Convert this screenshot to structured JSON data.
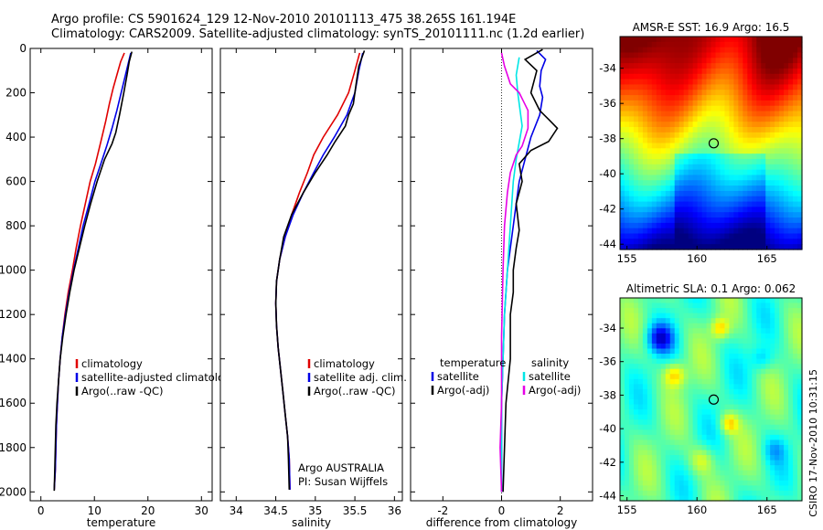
{
  "header": {
    "line1": "Argo profile: CS 5901624_129 12-Nov-2010 20101113_475 38.265S 161.194E",
    "line2": "Climatology: CARS2009. Satellite-adjusted climatology: synTS_20101111.nc (1.2d earlier)"
  },
  "footer": {
    "stamp": "CSIRO 17-Nov-2010 10:31:15"
  },
  "colors": {
    "red": "#e00000",
    "blue": "#0000e6",
    "black": "#000000",
    "cyan": "#00e6e6",
    "magenta": "#e600e6"
  },
  "chart_data": [
    {
      "id": "temperature",
      "type": "line",
      "xlabel": "temperature",
      "ylabel": "",
      "xlim": [
        -2,
        32
      ],
      "ylim": [
        2040,
        0
      ],
      "xticks": [
        0,
        10,
        20,
        30
      ],
      "yticks": [
        0,
        200,
        400,
        600,
        800,
        1000,
        1200,
        1400,
        1600,
        1800,
        2000
      ],
      "legend": {
        "position": "lower-center",
        "entries": [
          "climatology",
          "satellite-adjusted climatology",
          "Argo(..raw -QC)"
        ]
      },
      "series": [
        {
          "color_key": "red",
          "points": [
            [
              15.6,
              20
            ],
            [
              14.9,
              60
            ],
            [
              14.2,
              120
            ],
            [
              13.5,
              180
            ],
            [
              12.8,
              250
            ],
            [
              12.1,
              330
            ],
            [
              11.2,
              420
            ],
            [
              10.2,
              520
            ],
            [
              9.2,
              600
            ],
            [
              8.3,
              700
            ],
            [
              7.4,
              800
            ],
            [
              6.6,
              900
            ],
            [
              5.9,
              1000
            ],
            [
              5.1,
              1100
            ],
            [
              4.5,
              1200
            ],
            [
              4.0,
              1300
            ],
            [
              3.6,
              1400
            ],
            [
              3.3,
              1500
            ],
            [
              3.1,
              1600
            ],
            [
              2.9,
              1700
            ],
            [
              2.8,
              1800
            ],
            [
              2.7,
              1900
            ],
            [
              2.5,
              1990
            ]
          ]
        },
        {
          "color_key": "blue",
          "points": [
            [
              16.8,
              20
            ],
            [
              16.4,
              60
            ],
            [
              15.8,
              120
            ],
            [
              15.0,
              200
            ],
            [
              14.2,
              280
            ],
            [
              13.3,
              360
            ],
            [
              12.3,
              440
            ],
            [
              11.2,
              520
            ],
            [
              10.1,
              600
            ],
            [
              9.0,
              700
            ],
            [
              7.9,
              800
            ],
            [
              7.0,
              900
            ],
            [
              6.1,
              1000
            ],
            [
              5.3,
              1100
            ],
            [
              4.6,
              1200
            ],
            [
              4.0,
              1300
            ],
            [
              3.6,
              1400
            ],
            [
              3.3,
              1500
            ],
            [
              3.1,
              1600
            ],
            [
              2.9,
              1700
            ],
            [
              2.8,
              1800
            ],
            [
              2.7,
              1900
            ],
            [
              2.5,
              1990
            ]
          ]
        },
        {
          "color_key": "black",
          "points": [
            [
              17.0,
              15
            ],
            [
              16.5,
              60
            ],
            [
              16.1,
              120
            ],
            [
              15.5,
              200
            ],
            [
              14.7,
              300
            ],
            [
              14.0,
              380
            ],
            [
              13.3,
              430
            ],
            [
              11.9,
              500
            ],
            [
              10.5,
              600
            ],
            [
              9.3,
              700
            ],
            [
              8.2,
              800
            ],
            [
              7.2,
              900
            ],
            [
              6.2,
              1000
            ],
            [
              5.4,
              1100
            ],
            [
              4.7,
              1200
            ],
            [
              4.1,
              1300
            ],
            [
              3.6,
              1400
            ],
            [
              3.3,
              1500
            ],
            [
              3.0,
              1600
            ],
            [
              2.8,
              1700
            ],
            [
              2.7,
              1800
            ],
            [
              2.6,
              1900
            ],
            [
              2.5,
              1995
            ]
          ]
        }
      ]
    },
    {
      "id": "salinity",
      "type": "line",
      "xlabel": "salinity",
      "ylabel": "",
      "xlim": [
        33.8,
        36.1
      ],
      "ylim": [
        2040,
        0
      ],
      "xticks": [
        34,
        34.5,
        35,
        35.5,
        36
      ],
      "yticks": [
        0,
        200,
        400,
        600,
        800,
        1000,
        1200,
        1400,
        1600,
        1800,
        2000
      ],
      "legend": {
        "position": "lower-right",
        "entries": [
          "climatology",
          "satellite adj. clim.",
          "Argo(..raw -QC)"
        ]
      },
      "annotation": {
        "line1": "Argo AUSTRALIA",
        "line2": "PI: Susan Wijffels"
      },
      "series": [
        {
          "color_key": "red",
          "points": [
            [
              35.56,
              20
            ],
            [
              35.5,
              100
            ],
            [
              35.42,
              200
            ],
            [
              35.28,
              300
            ],
            [
              35.1,
              400
            ],
            [
              34.98,
              480
            ],
            [
              34.9,
              560
            ],
            [
              34.8,
              650
            ],
            [
              34.7,
              750
            ],
            [
              34.62,
              850
            ],
            [
              34.55,
              950
            ],
            [
              34.51,
              1050
            ],
            [
              34.5,
              1150
            ],
            [
              34.51,
              1250
            ],
            [
              34.53,
              1350
            ],
            [
              34.56,
              1450
            ],
            [
              34.59,
              1550
            ],
            [
              34.62,
              1650
            ],
            [
              34.65,
              1750
            ],
            [
              34.67,
              1850
            ],
            [
              34.68,
              1990
            ]
          ]
        },
        {
          "color_key": "blue",
          "points": [
            [
              35.6,
              20
            ],
            [
              35.55,
              100
            ],
            [
              35.5,
              200
            ],
            [
              35.4,
              300
            ],
            [
              35.24,
              400
            ],
            [
              35.1,
              480
            ],
            [
              34.98,
              560
            ],
            [
              34.85,
              650
            ],
            [
              34.72,
              750
            ],
            [
              34.62,
              850
            ],
            [
              34.55,
              950
            ],
            [
              34.51,
              1050
            ],
            [
              34.5,
              1150
            ],
            [
              34.51,
              1250
            ],
            [
              34.53,
              1350
            ],
            [
              34.56,
              1450
            ],
            [
              34.59,
              1550
            ],
            [
              34.62,
              1650
            ],
            [
              34.65,
              1750
            ],
            [
              34.67,
              1850
            ],
            [
              34.68,
              1990
            ]
          ]
        },
        {
          "color_key": "black",
          "points": [
            [
              35.62,
              10
            ],
            [
              35.55,
              80
            ],
            [
              35.52,
              150
            ],
            [
              35.48,
              250
            ],
            [
              35.42,
              300
            ],
            [
              35.38,
              350
            ],
            [
              35.25,
              420
            ],
            [
              35.15,
              480
            ],
            [
              35.0,
              560
            ],
            [
              34.85,
              650
            ],
            [
              34.7,
              750
            ],
            [
              34.6,
              850
            ],
            [
              34.55,
              950
            ],
            [
              34.51,
              1050
            ],
            [
              34.5,
              1150
            ],
            [
              34.51,
              1250
            ],
            [
              34.53,
              1350
            ],
            [
              34.56,
              1450
            ],
            [
              34.59,
              1550
            ],
            [
              34.62,
              1650
            ],
            [
              34.65,
              1750
            ],
            [
              34.66,
              1850
            ],
            [
              34.67,
              1990
            ]
          ]
        }
      ]
    },
    {
      "id": "difference",
      "type": "line",
      "xlabel": "difference from climatology",
      "ylabel": "",
      "xlim": [
        -3.1,
        3.1
      ],
      "ylim": [
        2040,
        0
      ],
      "xticks": [
        -2,
        0,
        2
      ],
      "yticks": [
        0,
        200,
        400,
        600,
        800,
        1000,
        1200,
        1400,
        1600,
        1800,
        2000
      ],
      "zero_line": true,
      "legend": {
        "position": "lower-center",
        "temperature_header": "temperature",
        "salinity_header": "salinity",
        "temperature_entries": [
          "satellite",
          "Argo(-adj)"
        ],
        "salinity_entries": [
          "satellite",
          "Argo(-adj)"
        ]
      },
      "series": [
        {
          "name": "temperature satellite",
          "color_key": "blue",
          "points": [
            [
              1.2,
              10
            ],
            [
              1.5,
              50
            ],
            [
              1.35,
              100
            ],
            [
              1.3,
              170
            ],
            [
              1.4,
              220
            ],
            [
              1.3,
              300
            ],
            [
              1.0,
              400
            ],
            [
              0.8,
              500
            ],
            [
              0.6,
              600
            ],
            [
              0.5,
              700
            ],
            [
              0.4,
              800
            ],
            [
              0.3,
              900
            ],
            [
              0.2,
              1000
            ],
            [
              0.15,
              1100
            ],
            [
              0.1,
              1200
            ],
            [
              0.05,
              1400
            ],
            [
              0.0,
              1600
            ],
            [
              0.0,
              1800
            ],
            [
              0.0,
              2000
            ]
          ]
        },
        {
          "name": "temperature Argo(-adj)",
          "color_key": "black",
          "points": [
            [
              1.4,
              5
            ],
            [
              0.8,
              50
            ],
            [
              1.2,
              100
            ],
            [
              1.0,
              200
            ],
            [
              1.3,
              280
            ],
            [
              1.6,
              320
            ],
            [
              1.9,
              360
            ],
            [
              1.6,
              420
            ],
            [
              1.0,
              460
            ],
            [
              0.6,
              520
            ],
            [
              0.7,
              600
            ],
            [
              0.5,
              700
            ],
            [
              0.6,
              820
            ],
            [
              0.5,
              900
            ],
            [
              0.4,
              1000
            ],
            [
              0.4,
              1100
            ],
            [
              0.3,
              1200
            ],
            [
              0.3,
              1400
            ],
            [
              0.15,
              1600
            ],
            [
              0.1,
              1800
            ],
            [
              0.05,
              2000
            ]
          ]
        },
        {
          "name": "salinity satellite",
          "color_key": "cyan",
          "points": [
            [
              0.6,
              40
            ],
            [
              0.5,
              120
            ],
            [
              0.55,
              200
            ],
            [
              0.7,
              350
            ],
            [
              0.5,
              500
            ],
            [
              0.4,
              600
            ],
            [
              0.35,
              700
            ],
            [
              0.3,
              800
            ],
            [
              0.25,
              900
            ],
            [
              0.2,
              1000
            ],
            [
              0.15,
              1100
            ],
            [
              0.1,
              1200
            ],
            [
              0.05,
              1400
            ],
            [
              0.0,
              1600
            ],
            [
              0.0,
              1800
            ],
            [
              0.0,
              2000
            ]
          ]
        },
        {
          "name": "salinity Argo(-adj)",
          "color_key": "magenta",
          "points": [
            [
              0.0,
              20
            ],
            [
              0.1,
              80
            ],
            [
              0.3,
              160
            ],
            [
              0.6,
              200
            ],
            [
              0.75,
              240
            ],
            [
              0.9,
              280
            ],
            [
              0.9,
              360
            ],
            [
              0.7,
              440
            ],
            [
              0.5,
              480
            ],
            [
              0.3,
              560
            ],
            [
              0.2,
              650
            ],
            [
              0.1,
              800
            ],
            [
              0.05,
              1000
            ],
            [
              0.0,
              1300
            ],
            [
              0.0,
              1600
            ],
            [
              -0.05,
              1800
            ],
            [
              0.0,
              2000
            ]
          ]
        }
      ]
    },
    {
      "id": "sst-map",
      "type": "heatmap",
      "title": "AMSR-E SST: 16.9  Argo: 16.5",
      "xlim": [
        154.5,
        167.5
      ],
      "ylim": [
        -44.3,
        -32.2
      ],
      "xticks": [
        155,
        160,
        165
      ],
      "yticks": [
        -34,
        -36,
        -38,
        -40,
        -42,
        -44
      ],
      "marker": {
        "lon": 161.194,
        "lat": -38.265
      }
    },
    {
      "id": "sla-map",
      "type": "heatmap",
      "title": "Altimetric SLA: 0.1  Argo: 0.062",
      "xlim": [
        154.5,
        167.5
      ],
      "ylim": [
        -44.3,
        -32.2
      ],
      "xticks": [
        155,
        160,
        165
      ],
      "yticks": [
        -34,
        -36,
        -38,
        -40,
        -42,
        -44
      ],
      "marker": {
        "lon": 161.194,
        "lat": -38.265
      }
    }
  ]
}
